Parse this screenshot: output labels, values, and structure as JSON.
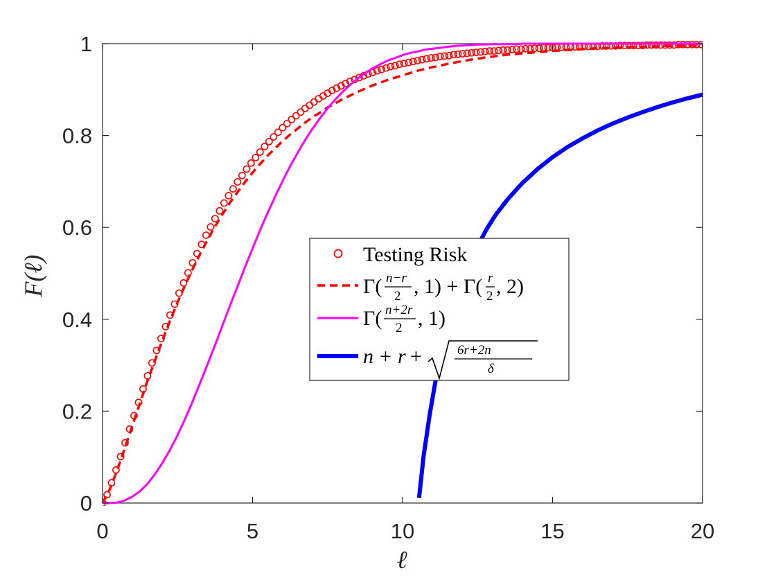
{
  "chart_data": {
    "type": "line",
    "xlabel": "ℓ",
    "ylabel": "F(ℓ)",
    "xlim": [
      0,
      20
    ],
    "ylim": [
      0,
      1
    ],
    "xticks": [
      0,
      5,
      10,
      15,
      20
    ],
    "yticks": [
      0,
      0.2,
      0.4,
      0.6,
      0.8,
      1
    ],
    "xtick_labels": [
      "0",
      "5",
      "10",
      "15",
      "20"
    ],
    "ytick_labels": [
      "0",
      "0.2",
      "0.4",
      "0.6",
      "0.8",
      "1"
    ],
    "grid": false,
    "legend_position": "center",
    "series": [
      {
        "name": "Testing Risk",
        "style": "markers-circle",
        "color": "#ff0000",
        "x": [
          0.0,
          0.15,
          0.3,
          0.45,
          0.6,
          0.75,
          0.9,
          1.05,
          1.2,
          1.35,
          1.5,
          1.65,
          1.8,
          1.95,
          2.1,
          2.25,
          2.4,
          2.55,
          2.7,
          2.85,
          3.0,
          3.15,
          3.3,
          3.45,
          3.6,
          3.75,
          3.9,
          4.05,
          4.2,
          4.35,
          4.5,
          4.65,
          4.8,
          4.95,
          5.1,
          5.25,
          5.4,
          5.55,
          5.7,
          5.85,
          6.0,
          6.15,
          6.3,
          6.45,
          6.6,
          6.75,
          6.9,
          7.05,
          7.2,
          7.35,
          7.5,
          7.65,
          7.8,
          7.95,
          8.1,
          8.25,
          8.4,
          8.55,
          8.7,
          8.85,
          9.0,
          9.15,
          9.3,
          9.45,
          9.6,
          9.75,
          9.9,
          10.05,
          10.2,
          10.35,
          10.5,
          10.65,
          10.8,
          10.95,
          11.1,
          11.25,
          11.4,
          11.55,
          11.7,
          11.85,
          12.0,
          12.15,
          12.3,
          12.45,
          12.6,
          12.75,
          12.9,
          13.05,
          13.2,
          13.35,
          13.5,
          13.65,
          13.8,
          13.95,
          14.1,
          14.25,
          14.4,
          14.55,
          14.7,
          14.85,
          15.0,
          15.15,
          15.3,
          15.45,
          15.6,
          15.75,
          15.9,
          16.05,
          16.2,
          16.35,
          16.5,
          16.65,
          16.8,
          16.95,
          17.1,
          17.25,
          17.4,
          17.55,
          17.7,
          17.85,
          18.0,
          18.15,
          18.3,
          18.45,
          18.6,
          18.75,
          18.9,
          19.05,
          19.2,
          19.35,
          19.5,
          19.65,
          19.8,
          19.95
        ],
        "y": [
          0.0,
          0.018,
          0.044,
          0.072,
          0.101,
          0.131,
          0.161,
          0.19,
          0.219,
          0.248,
          0.277,
          0.305,
          0.332,
          0.358,
          0.384,
          0.409,
          0.433,
          0.457,
          0.479,
          0.501,
          0.523,
          0.543,
          0.563,
          0.583,
          0.601,
          0.619,
          0.636,
          0.653,
          0.669,
          0.684,
          0.699,
          0.713,
          0.727,
          0.74,
          0.752,
          0.764,
          0.776,
          0.787,
          0.797,
          0.807,
          0.817,
          0.826,
          0.835,
          0.843,
          0.851,
          0.859,
          0.866,
          0.873,
          0.88,
          0.886,
          0.892,
          0.898,
          0.903,
          0.908,
          0.913,
          0.918,
          0.922,
          0.926,
          0.93,
          0.934,
          0.937,
          0.941,
          0.944,
          0.947,
          0.95,
          0.952,
          0.955,
          0.957,
          0.959,
          0.961,
          0.963,
          0.965,
          0.967,
          0.969,
          0.97,
          0.972,
          0.973,
          0.974,
          0.976,
          0.977,
          0.978,
          0.979,
          0.98,
          0.981,
          0.982,
          0.983,
          0.984,
          0.984,
          0.985,
          0.986,
          0.986,
          0.987,
          0.988,
          0.988,
          0.989,
          0.989,
          0.99,
          0.99,
          0.991,
          0.991,
          0.991,
          0.992,
          0.992,
          0.992,
          0.993,
          0.993,
          0.993,
          0.994,
          0.994,
          0.994,
          0.994,
          0.995,
          0.995,
          0.995,
          0.995,
          0.996,
          0.996,
          0.996,
          0.996,
          0.996,
          0.996,
          0.997,
          0.997,
          0.997,
          0.997,
          0.997,
          0.997,
          0.997,
          0.998,
          0.998,
          0.998,
          0.998,
          0.998,
          0.998
        ]
      },
      {
        "name": "Γ((n−r)/2, 1) + Γ(r/2, 2)",
        "style": "dashed",
        "color": "#ff0000",
        "x": [
          0.0,
          0.25,
          0.5,
          0.75,
          1.0,
          1.25,
          1.5,
          1.75,
          2.0,
          2.25,
          2.5,
          2.75,
          3.0,
          3.25,
          3.5,
          3.75,
          4.0,
          4.25,
          4.5,
          4.75,
          5.0,
          5.25,
          5.5,
          5.75,
          6.0,
          6.25,
          6.5,
          6.75,
          7.0,
          7.25,
          7.5,
          7.75,
          8.0,
          8.25,
          8.5,
          8.75,
          9.0,
          9.25,
          9.5,
          9.75,
          10.0,
          10.25,
          10.5,
          10.75,
          11.0,
          11.25,
          11.5,
          11.75,
          12.0,
          12.25,
          12.5,
          12.75,
          13.0,
          13.25,
          13.5,
          13.75,
          14.0,
          14.25,
          14.5,
          14.75,
          15.0,
          15.25,
          15.5,
          15.75,
          16.0,
          16.25,
          16.5,
          16.75,
          17.0,
          17.25,
          17.5,
          17.75,
          18.0,
          18.25,
          18.5,
          18.75,
          19.0,
          19.25,
          19.5,
          19.75,
          20.0
        ],
        "y": [
          0.0,
          0.031,
          0.074,
          0.121,
          0.17,
          0.218,
          0.266,
          0.311,
          0.355,
          0.397,
          0.437,
          0.474,
          0.509,
          0.542,
          0.573,
          0.602,
          0.629,
          0.654,
          0.677,
          0.699,
          0.719,
          0.738,
          0.756,
          0.772,
          0.788,
          0.802,
          0.815,
          0.828,
          0.84,
          0.85,
          0.861,
          0.87,
          0.879,
          0.887,
          0.895,
          0.902,
          0.909,
          0.915,
          0.921,
          0.926,
          0.931,
          0.936,
          0.941,
          0.945,
          0.949,
          0.952,
          0.956,
          0.959,
          0.962,
          0.965,
          0.967,
          0.97,
          0.972,
          0.974,
          0.976,
          0.977,
          0.979,
          0.98,
          0.982,
          0.983,
          0.984,
          0.985,
          0.986,
          0.987,
          0.988,
          0.989,
          0.99,
          0.99,
          0.991,
          0.992,
          0.992,
          0.993,
          0.993,
          0.994,
          0.994,
          0.995,
          0.995,
          0.995,
          0.996,
          0.996,
          0.996
        ]
      },
      {
        "name": "Γ((n+2r)/2, 1)",
        "style": "solid-thin",
        "color": "#ff00ff",
        "x": [
          0.0,
          0.25,
          0.5,
          0.75,
          1.0,
          1.25,
          1.5,
          1.75,
          2.0,
          2.25,
          2.5,
          2.75,
          3.0,
          3.25,
          3.5,
          3.75,
          4.0,
          4.25,
          4.5,
          4.75,
          5.0,
          5.25,
          5.5,
          5.75,
          6.0,
          6.25,
          6.5,
          6.75,
          7.0,
          7.25,
          7.5,
          7.75,
          8.0,
          8.25,
          8.5,
          8.75,
          9.0,
          9.25,
          9.5,
          9.75,
          10.0,
          10.25,
          10.5,
          10.75,
          11.0,
          11.25,
          11.5,
          11.75,
          12.0,
          12.25,
          12.5,
          12.75,
          13.0,
          13.25,
          13.5,
          13.75,
          14.0,
          14.25,
          14.5,
          14.75,
          15.0,
          15.25,
          15.5,
          15.75,
          16.0,
          16.25,
          16.5,
          16.75,
          17.0,
          17.25,
          17.5,
          17.75,
          18.0,
          18.25,
          18.5,
          18.75,
          19.0,
          19.25,
          19.5,
          19.75,
          20.0
        ],
        "y": [
          0.0,
          0.0,
          0.001,
          0.006,
          0.014,
          0.026,
          0.042,
          0.063,
          0.088,
          0.116,
          0.148,
          0.183,
          0.221,
          0.261,
          0.302,
          0.344,
          0.387,
          0.43,
          0.472,
          0.514,
          0.554,
          0.594,
          0.631,
          0.667,
          0.701,
          0.733,
          0.762,
          0.79,
          0.815,
          0.838,
          0.859,
          0.878,
          0.895,
          0.91,
          0.924,
          0.936,
          0.946,
          0.955,
          0.963,
          0.969,
          0.975,
          0.98,
          0.983,
          0.987,
          0.989,
          0.991,
          0.993,
          0.995,
          0.996,
          0.997,
          0.998,
          0.998,
          0.999,
          0.999,
          0.999,
          0.999,
          1.0,
          1.0,
          1.0,
          1.0,
          1.0,
          1.0,
          1.0,
          1.0,
          1.0,
          1.0,
          1.0,
          1.0,
          1.0,
          1.0,
          1.0,
          1.0,
          1.0,
          1.0,
          1.0,
          1.0,
          1.0,
          1.0,
          1.0,
          1.0,
          1.0
        ]
      },
      {
        "name": "n + r + √((6r+2n)/δ)",
        "style": "solid-thick",
        "color": "#0000ff",
        "x": [
          10.55,
          10.7,
          10.9,
          11.1,
          11.35,
          11.6,
          11.9,
          12.2,
          12.5,
          12.8,
          13.1,
          13.5,
          14.0,
          14.5,
          15.0,
          15.5,
          16.0,
          16.5,
          17.0,
          17.5,
          18.0,
          18.5,
          19.0,
          19.5,
          20.0
        ],
        "y": [
          0.011,
          0.101,
          0.191,
          0.266,
          0.341,
          0.403,
          0.465,
          0.516,
          0.559,
          0.596,
          0.627,
          0.661,
          0.697,
          0.727,
          0.753,
          0.775,
          0.794,
          0.811,
          0.826,
          0.839,
          0.851,
          0.862,
          0.872,
          0.881,
          0.889
        ]
      }
    ]
  }
}
